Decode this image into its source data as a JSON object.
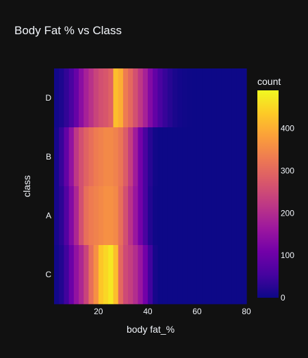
{
  "chart_data": {
    "type": "heatmap",
    "title": "Body Fat % vs Class",
    "xlabel": "body fat_%",
    "ylabel": "class",
    "xlim": [
      2,
      80
    ],
    "x_ticks": [
      20,
      40,
      60,
      80
    ],
    "bin_width": 2,
    "bin_start": 2,
    "categories": [
      "D",
      "B",
      "A",
      "C"
    ],
    "colorbar": {
      "title": "count",
      "range": [
        0,
        490
      ],
      "ticks": [
        0,
        100,
        200,
        300,
        400
      ]
    },
    "colorscale": [
      "#0d0887",
      "#46039f",
      "#7201a8",
      "#9c179e",
      "#bd3786",
      "#d8576b",
      "#ed7953",
      "#fb9f3a",
      "#fdca26",
      "#f0f921"
    ],
    "counts": {
      "D": [
        5,
        15,
        35,
        60,
        95,
        140,
        180,
        210,
        240,
        260,
        270,
        290,
        420,
        400,
        330,
        300,
        260,
        220,
        180,
        130,
        90,
        60,
        40,
        25,
        12,
        6,
        3,
        1,
        0,
        0,
        0,
        0,
        0,
        0,
        0,
        0,
        0,
        0,
        0
      ],
      "B": [
        10,
        40,
        90,
        150,
        220,
        260,
        290,
        310,
        330,
        340,
        350,
        350,
        340,
        320,
        280,
        230,
        170,
        110,
        60,
        25,
        5,
        0,
        0,
        0,
        0,
        0,
        0,
        0,
        0,
        0,
        0,
        0,
        0,
        0,
        0,
        0,
        0,
        0,
        0
      ],
      "A": [
        10,
        30,
        70,
        130,
        190,
        260,
        310,
        330,
        340,
        350,
        360,
        360,
        350,
        310,
        260,
        210,
        160,
        110,
        60,
        20,
        3,
        0,
        0,
        0,
        0,
        0,
        0,
        0,
        0,
        0,
        0,
        0,
        0,
        0,
        0,
        0,
        0,
        0,
        0
      ],
      "C": [
        5,
        20,
        50,
        100,
        150,
        190,
        240,
        310,
        360,
        430,
        450,
        470,
        420,
        300,
        250,
        230,
        200,
        160,
        110,
        50,
        10,
        0,
        0,
        0,
        0,
        0,
        0,
        0,
        0,
        0,
        0,
        0,
        0,
        0,
        0,
        0,
        0,
        0,
        0
      ]
    }
  }
}
